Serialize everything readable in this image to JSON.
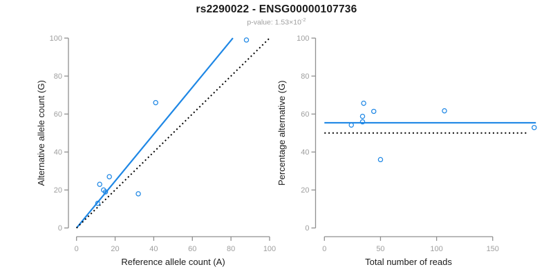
{
  "header": {
    "title": "rs2290022 - ENSG00000107736",
    "pvalue_prefix": "p-value: 1.53×10",
    "pvalue_exponent": "-2"
  },
  "colors": {
    "accent": "#1E87E5",
    "line_dark": "#000000",
    "axis_line": "#8f8f8f",
    "tick_label": "#9e9e9e",
    "text": "#1a1a1a"
  },
  "chart_data": [
    {
      "type": "scatter",
      "name": "allele-counts-plot",
      "title": "",
      "xlabel": "Reference allele count (A)",
      "ylabel": "Alternative allele count (G)",
      "xlim": [
        0,
        100
      ],
      "ylim": [
        0,
        100
      ],
      "xticks": [
        0,
        20,
        40,
        60,
        80,
        100
      ],
      "yticks": [
        0,
        20,
        40,
        60,
        80,
        100
      ],
      "grid": false,
      "points": [
        [
          11,
          13
        ],
        [
          12,
          23
        ],
        [
          14,
          20
        ],
        [
          15,
          19
        ],
        [
          17,
          27
        ],
        [
          32,
          18
        ],
        [
          41,
          66
        ],
        [
          88,
          99
        ]
      ],
      "lines": [
        {
          "name": "regression-line",
          "style": "solid",
          "color_key": "accent",
          "coords": [
            [
              0,
              0
            ],
            [
              81,
              100
            ]
          ]
        },
        {
          "name": "identity-line",
          "style": "dotted",
          "color_key": "line_dark",
          "coords": [
            [
              0,
              0
            ],
            [
              100,
              100
            ]
          ]
        }
      ]
    },
    {
      "type": "scatter",
      "name": "percentage-vs-reads-plot",
      "title": "",
      "xlabel": "Total number of reads",
      "ylabel": "Percentage alternative (G)",
      "xlim": [
        0,
        188
      ],
      "ylim": [
        0,
        100
      ],
      "xticks": [
        0,
        50,
        100,
        150
      ],
      "yticks": [
        0,
        20,
        40,
        60,
        80,
        100
      ],
      "grid": false,
      "points": [
        [
          24,
          54.2
        ],
        [
          34,
          58.8
        ],
        [
          34,
          55.9
        ],
        [
          35,
          65.7
        ],
        [
          44,
          61.4
        ],
        [
          50,
          36.0
        ],
        [
          107,
          61.7
        ],
        [
          187,
          52.9
        ]
      ],
      "lines": [
        {
          "name": "fitted-percentage-line",
          "style": "solid",
          "color_key": "accent",
          "coords": [
            [
              0,
              55.4
            ],
            [
              188.5,
              55.4
            ]
          ]
        },
        {
          "name": "expected-50pct-line",
          "style": "dotted",
          "color_key": "line_dark",
          "coords": [
            [
              0,
              50
            ],
            [
              182,
              50
            ]
          ]
        }
      ]
    }
  ]
}
